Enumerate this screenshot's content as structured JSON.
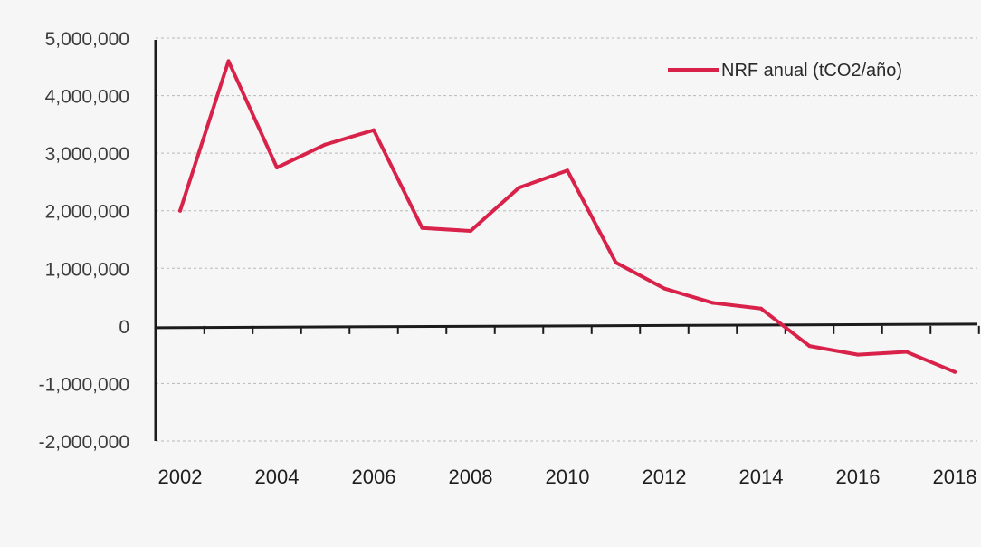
{
  "chart_data": {
    "type": "line",
    "x": [
      "2002",
      "2003",
      "2004",
      "2005",
      "2006",
      "2007",
      "2008",
      "2009",
      "2010",
      "2011",
      "2012",
      "2013",
      "2014",
      "2015",
      "2016",
      "2017",
      "2018"
    ],
    "xtick_labels": [
      "2002",
      "2004",
      "2006",
      "2008",
      "2010",
      "2012",
      "2014",
      "2016",
      "2018"
    ],
    "series": [
      {
        "name": "NRF anual (tCO2/año)",
        "color": "#d8224a",
        "values": [
          2000000,
          4600000,
          2750000,
          3150000,
          3400000,
          1700000,
          1650000,
          2400000,
          2700000,
          1100000,
          650000,
          400000,
          300000,
          -350000,
          -500000,
          -450000,
          -800000
        ]
      }
    ],
    "ytick_labels": [
      "5,000,000",
      "4,000,000",
      "3,000,000",
      "2,000,000",
      "1,000,000",
      "0",
      "-1,000,000",
      "-2,000,000"
    ],
    "ytick_values": [
      5000000,
      4000000,
      3000000,
      2000000,
      1000000,
      0,
      -1000000,
      -2000000
    ],
    "ylim": [
      -2000000,
      5000000
    ],
    "grid": true,
    "legend": "top-right",
    "title": "",
    "xlabel": "",
    "ylabel": ""
  }
}
